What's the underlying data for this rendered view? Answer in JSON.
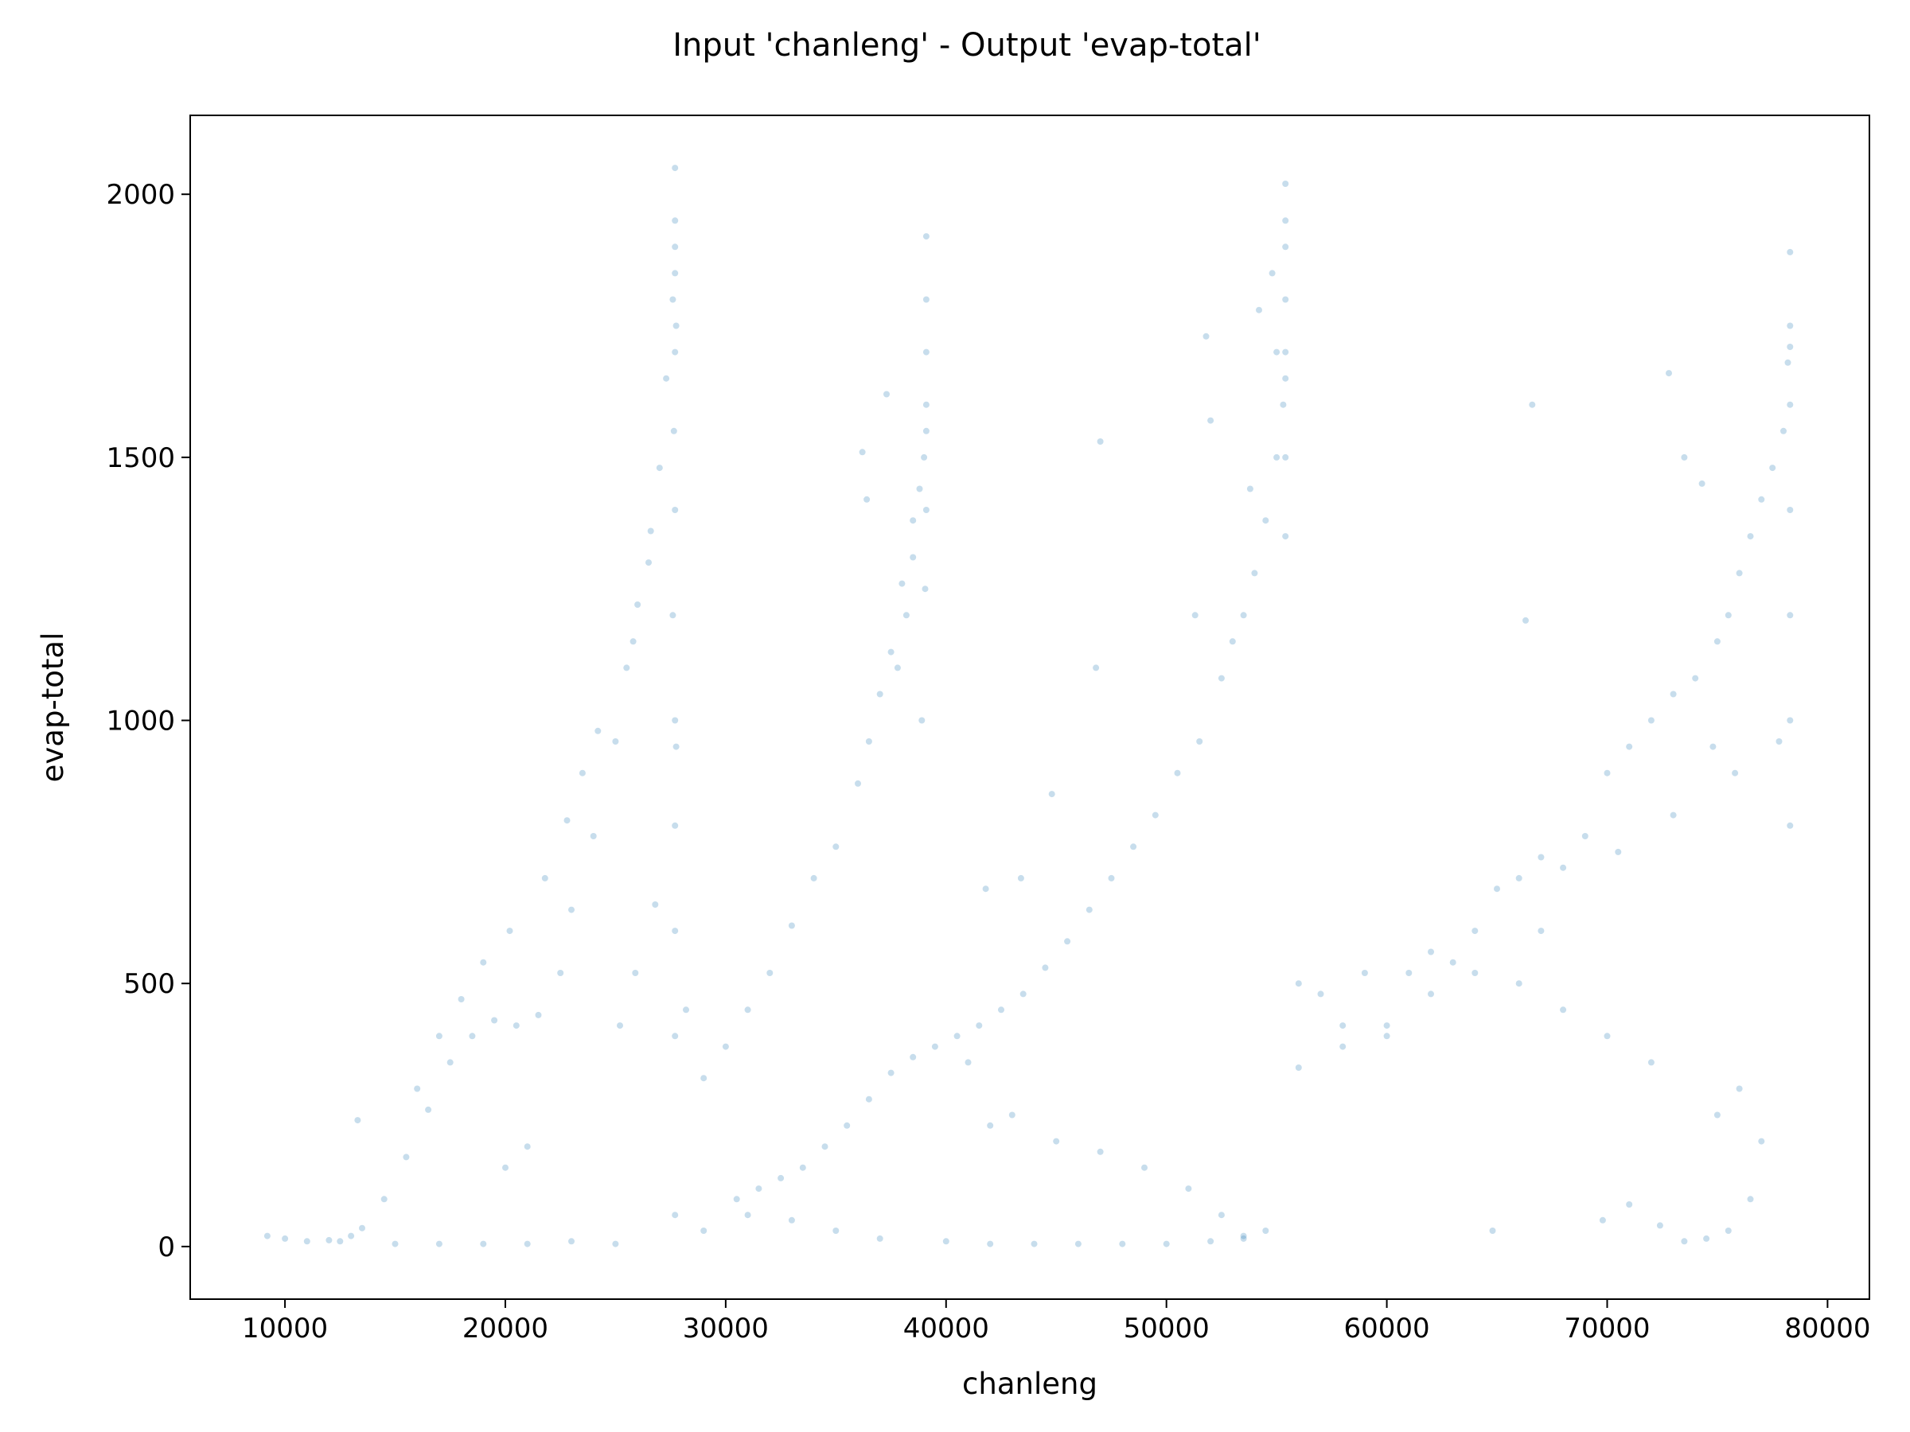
{
  "chart_data": {
    "type": "scatter",
    "title": "Input 'chanleng' - Output 'evap-total'",
    "xlabel": "chanleng",
    "ylabel": "evap-total",
    "xlim": [
      5700,
      81900
    ],
    "ylim": [
      -100,
      2150
    ],
    "xticks": [
      10000,
      20000,
      30000,
      40000,
      50000,
      60000,
      70000,
      80000
    ],
    "yticks": [
      0,
      500,
      1000,
      1500,
      2000
    ],
    "xtick_labels": [
      "10000",
      "20000",
      "30000",
      "40000",
      "50000",
      "60000",
      "70000",
      "80000"
    ],
    "ytick_labels": [
      "0",
      "500",
      "1000",
      "1500",
      "2000"
    ],
    "grid": false,
    "point_color": "#1f77b4",
    "point_alpha": 0.25,
    "series": [
      {
        "x": [
          9200,
          10000,
          11000,
          12000,
          13000,
          13500,
          14500,
          15500,
          16500,
          17500,
          18500,
          19500,
          20500,
          21500,
          22500,
          23000,
          24000,
          25000,
          25800,
          26500,
          27000,
          27300,
          27600,
          27700,
          27700,
          27700,
          27700,
          26000,
          26600,
          25500,
          24200,
          23500,
          22800,
          21800,
          20200,
          19000,
          18000,
          17000,
          16000,
          13300,
          20000,
          21000,
          25200,
          25900,
          26800,
          27600,
          27700,
          27650,
          27700,
          27700,
          27750,
          27750,
          27700,
          27700,
          27700,
          27700,
          28200,
          29000,
          30000,
          31000,
          32000,
          33000,
          34000,
          35000,
          36000,
          36500,
          37000,
          37500,
          38000,
          38500,
          38800,
          39000,
          39100,
          39100,
          39100,
          39100,
          39100,
          39100,
          39050,
          36200,
          36400,
          37300,
          38500,
          37800,
          38200,
          38900,
          30500,
          31500,
          32500,
          33500,
          34500,
          35500,
          36500,
          37500,
          38500,
          39500,
          40500,
          41500,
          42500,
          43500,
          44500,
          45500,
          46500,
          47500,
          48500,
          49500,
          50500,
          51500,
          52500,
          53000,
          53500,
          54000,
          54500,
          55000,
          55300,
          55400,
          55400,
          55400,
          55400,
          55400,
          55400,
          55400,
          55400,
          52000,
          51300,
          51800,
          53800,
          54200,
          54800,
          55000,
          47000,
          46800,
          43400,
          41800,
          44800,
          41000,
          42000,
          43000,
          45000,
          47000,
          49000,
          51000,
          52500,
          53500,
          54500,
          56000,
          57000,
          58000,
          59000,
          60000,
          61000,
          62000,
          63000,
          64000,
          65000,
          66000,
          67000,
          68000,
          69000,
          70000,
          71000,
          72000,
          73000,
          74000,
          75000,
          75500,
          76000,
          76500,
          77000,
          77500,
          78000,
          78200,
          78300,
          78300,
          78300,
          78300,
          78300,
          78300,
          78300,
          78300,
          66300,
          66600,
          72800,
          74300,
          73500,
          74800,
          64800,
          69800,
          71000,
          72400,
          73500,
          74500,
          75500,
          76500,
          77000,
          75000,
          76000,
          72000,
          70000,
          68000,
          66000,
          64000,
          62000,
          60000,
          58000,
          56000,
          67000,
          70500,
          73000,
          75800,
          77800,
          12500,
          15000,
          17000,
          19000,
          21000,
          23000,
          25000,
          29000,
          31000,
          33000,
          35000,
          37000,
          40000,
          42000,
          44000,
          46000,
          48000,
          50000,
          52000,
          53500
        ],
        "y": [
          20,
          15,
          10,
          12,
          20,
          35,
          90,
          170,
          260,
          350,
          400,
          430,
          420,
          440,
          520,
          640,
          780,
          960,
          1150,
          1300,
          1480,
          1650,
          1800,
          1900,
          2050,
          1950,
          1700,
          1220,
          1360,
          1100,
          980,
          900,
          810,
          700,
          600,
          540,
          470,
          400,
          300,
          240,
          150,
          190,
          420,
          520,
          650,
          1200,
          1000,
          1550,
          1400,
          1850,
          1750,
          950,
          800,
          600,
          400,
          60,
          450,
          320,
          380,
          450,
          520,
          610,
          700,
          760,
          880,
          960,
          1050,
          1130,
          1260,
          1380,
          1440,
          1500,
          1600,
          1700,
          1800,
          1920,
          1550,
          1400,
          1250,
          1510,
          1420,
          1620,
          1310,
          1100,
          1200,
          1000,
          90,
          110,
          130,
          150,
          190,
          230,
          280,
          330,
          360,
          380,
          400,
          420,
          450,
          480,
          530,
          580,
          640,
          700,
          760,
          820,
          900,
          960,
          1080,
          1150,
          1200,
          1280,
          1380,
          1500,
          1600,
          1700,
          1800,
          1900,
          2020,
          1950,
          1650,
          1500,
          1350,
          1570,
          1200,
          1730,
          1440,
          1780,
          1850,
          1700,
          1530,
          1100,
          700,
          680,
          860,
          350,
          230,
          250,
          200,
          180,
          150,
          110,
          60,
          20,
          30,
          500,
          480,
          420,
          520,
          400,
          520,
          560,
          540,
          600,
          680,
          700,
          740,
          720,
          780,
          900,
          950,
          1000,
          1050,
          1080,
          1150,
          1200,
          1280,
          1350,
          1420,
          1480,
          1550,
          1680,
          1750,
          1890,
          1600,
          1400,
          1200,
          1000,
          800,
          1710,
          1190,
          1600,
          1660,
          1450,
          1500,
          950,
          30,
          50,
          80,
          40,
          10,
          15,
          30,
          90,
          200,
          250,
          300,
          350,
          400,
          450,
          500,
          520,
          480,
          420,
          380,
          340,
          600,
          750,
          820,
          900,
          960,
          10,
          5,
          5,
          5,
          5,
          10,
          5,
          30,
          60,
          50,
          30,
          15,
          10,
          5,
          5,
          5,
          5,
          5,
          10,
          15
        ]
      }
    ]
  }
}
